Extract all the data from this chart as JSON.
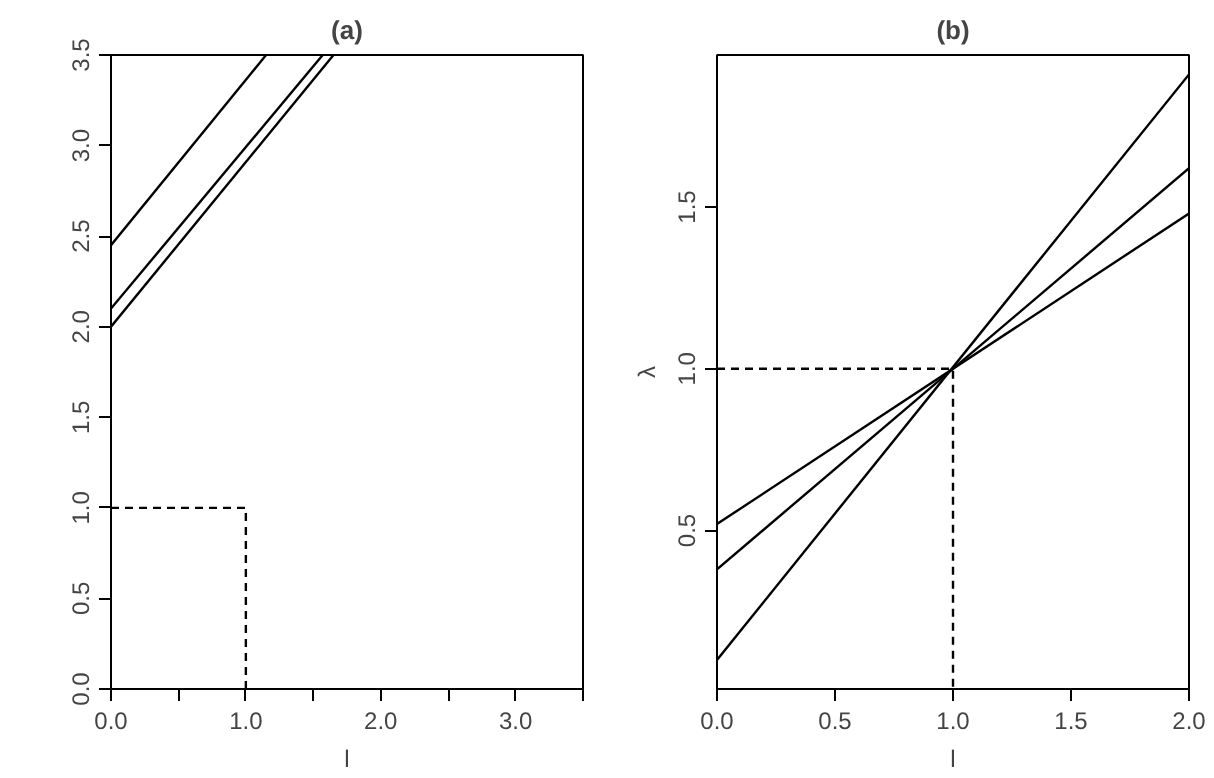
{
  "chart_data": [
    {
      "type": "line",
      "title": "(a)",
      "xlabel": "l",
      "xlim": [
        0,
        3.5
      ],
      "ylim": [
        0,
        3.5
      ],
      "xticks": [
        {
          "value": 0,
          "label": "0.0"
        },
        {
          "value": 0.5,
          "label": null
        },
        {
          "value": 1,
          "label": "1.0"
        },
        {
          "value": 1.5,
          "label": null
        },
        {
          "value": 2,
          "label": "2.0"
        },
        {
          "value": 2.5,
          "label": null
        },
        {
          "value": 3,
          "label": "3.0"
        },
        {
          "value": 3.5,
          "label": null
        }
      ],
      "yticks": [
        {
          "value": 0,
          "label": "0.0"
        },
        {
          "value": 0.5,
          "label": "0.5"
        },
        {
          "value": 1,
          "label": "1.0"
        },
        {
          "value": 1.5,
          "label": "1.5"
        },
        {
          "value": 2,
          "label": "2.0"
        },
        {
          "value": 2.5,
          "label": "2.5"
        },
        {
          "value": 3,
          "label": "3.0"
        },
        {
          "value": 3.5,
          "label": "3.5"
        }
      ],
      "series": [
        {
          "color": "#000000",
          "x": [
            0,
            1.15
          ],
          "values": [
            2.45,
            3.5
          ]
        },
        {
          "color": "#000000",
          "x": [
            0,
            1.57
          ],
          "values": [
            2.1,
            3.5
          ]
        },
        {
          "color": "#000000",
          "x": [
            0,
            1.65
          ],
          "values": [
            2.0,
            3.5
          ]
        },
        {
          "color": "#000000",
          "x": [
            0,
            1,
            1
          ],
          "values": [
            1,
            1,
            0
          ],
          "line_style": "dashed"
        }
      ]
    },
    {
      "type": "line",
      "title": "(b)",
      "xlabel": "l",
      "ylabel": "λ",
      "xlim": [
        0,
        2
      ],
      "ylim": [
        0.01,
        1.97
      ],
      "xticks": [
        {
          "value": 0,
          "label": "0.0"
        },
        {
          "value": 0.5,
          "label": "0.5"
        },
        {
          "value": 1,
          "label": "1.0"
        },
        {
          "value": 1.5,
          "label": "1.5"
        },
        {
          "value": 2,
          "label": "2.0"
        }
      ],
      "yticks": [
        {
          "value": 0.5,
          "label": "0.5"
        },
        {
          "value": 1,
          "label": "1.0"
        },
        {
          "value": 1.5,
          "label": "1.5"
        }
      ],
      "series": [
        {
          "color": "#000000",
          "x": [
            0,
            2
          ],
          "values": [
            0.52,
            1.48
          ]
        },
        {
          "color": "#000000",
          "x": [
            0,
            2
          ],
          "values": [
            0.38,
            1.62
          ]
        },
        {
          "color": "#000000",
          "x": [
            0,
            2
          ],
          "values": [
            0.1,
            1.91
          ]
        },
        {
          "color": "#000000",
          "x": [
            0,
            1,
            1
          ],
          "values": [
            1,
            1,
            0.01
          ],
          "line_style": "dashed"
        }
      ]
    }
  ]
}
